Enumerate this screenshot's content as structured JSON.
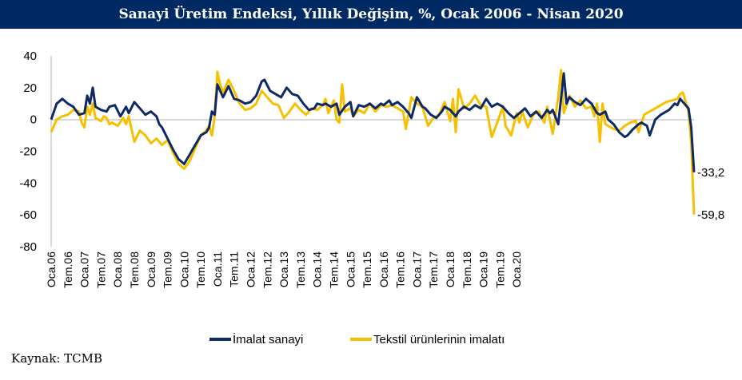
{
  "chart_data": {
    "type": "line",
    "title": "Sanayi Üretim Endeksi, Yıllık Değişim, %, Ocak 2006 - Nisan 2020",
    "source": "Kaynak: TCMB",
    "ylim": [
      -80,
      40
    ],
    "yticks": [
      "40",
      "20",
      "0",
      "-20",
      "-40",
      "-60",
      "-80"
    ],
    "xticks": [
      "Oca.06",
      "Tem.06",
      "Oca.07",
      "Tem.07",
      "Oca.08",
      "Tem.08",
      "Oca.09",
      "Tem.09",
      "Oca.10",
      "Tem.10",
      "Oca.11",
      "Tem.11",
      "Oca.12",
      "Tem.12",
      "Oca.13",
      "Tem.13",
      "Oca.14",
      "Tem.14",
      "Oca.15",
      "Tem.15",
      "Oca.16",
      "Tem.16",
      "Oca.17",
      "Tem.17",
      "Oca.18",
      "Tem.18",
      "Oca.19",
      "Tem.19",
      "Oca.20"
    ],
    "legend_position": "bottom",
    "annotations": [
      {
        "series": 0,
        "text": "-33,2"
      },
      {
        "series": 1,
        "text": "-59,8"
      }
    ],
    "series": [
      {
        "name": "İmalat sanayi",
        "color": "#0d2a66",
        "points": [
          [
            0,
            0
          ],
          [
            2,
            10
          ],
          [
            4,
            13
          ],
          [
            6,
            10
          ],
          [
            8,
            8
          ],
          [
            10,
            3
          ],
          [
            12,
            4
          ],
          [
            13,
            15
          ],
          [
            14,
            10
          ],
          [
            15,
            20
          ],
          [
            16,
            8
          ],
          [
            18,
            6
          ],
          [
            20,
            5
          ],
          [
            21,
            8
          ],
          [
            23,
            9
          ],
          [
            25,
            2
          ],
          [
            27,
            8
          ],
          [
            28,
            4
          ],
          [
            30,
            11
          ],
          [
            32,
            7
          ],
          [
            34,
            3
          ],
          [
            36,
            5
          ],
          [
            38,
            2
          ],
          [
            39,
            -3
          ],
          [
            40,
            -5
          ],
          [
            42,
            -12
          ],
          [
            44,
            -19
          ],
          [
            46,
            -25
          ],
          [
            48,
            -28
          ],
          [
            50,
            -22
          ],
          [
            52,
            -16
          ],
          [
            54,
            -10
          ],
          [
            56,
            -8
          ],
          [
            57,
            -5
          ],
          [
            58,
            5
          ],
          [
            59,
            3
          ],
          [
            60,
            22
          ],
          [
            62,
            14
          ],
          [
            64,
            21
          ],
          [
            66,
            13
          ],
          [
            68,
            12
          ],
          [
            70,
            10
          ],
          [
            72,
            11
          ],
          [
            74,
            15
          ],
          [
            76,
            24
          ],
          [
            77,
            25
          ],
          [
            79,
            18
          ],
          [
            81,
            16
          ],
          [
            83,
            14
          ],
          [
            85,
            20
          ],
          [
            87,
            16
          ],
          [
            89,
            15
          ],
          [
            91,
            10
          ],
          [
            93,
            6
          ],
          [
            95,
            7
          ],
          [
            96,
            10
          ],
          [
            98,
            9
          ],
          [
            99,
            10
          ],
          [
            101,
            8
          ],
          [
            103,
            10
          ],
          [
            104,
            3
          ],
          [
            106,
            8
          ],
          [
            108,
            11
          ],
          [
            109,
            2
          ],
          [
            111,
            9
          ],
          [
            113,
            8
          ],
          [
            115,
            10
          ],
          [
            117,
            7
          ],
          [
            119,
            10
          ],
          [
            120,
            9
          ],
          [
            122,
            12
          ],
          [
            123,
            9
          ],
          [
            125,
            11
          ],
          [
            127,
            8
          ],
          [
            129,
            4
          ],
          [
            130,
            1
          ],
          [
            132,
            14
          ],
          [
            133,
            11
          ],
          [
            134,
            8
          ],
          [
            135,
            7
          ],
          [
            137,
            3
          ],
          [
            139,
            1
          ],
          [
            141,
            5
          ],
          [
            142,
            8
          ],
          [
            144,
            6
          ],
          [
            146,
            2
          ],
          [
            147,
            5
          ],
          [
            149,
            8
          ],
          [
            150,
            7
          ],
          [
            151,
            6
          ],
          [
            153,
            9
          ],
          [
            155,
            7
          ],
          [
            157,
            13
          ],
          [
            159,
            8
          ],
          [
            161,
            10
          ],
          [
            163,
            8
          ],
          [
            165,
            4
          ],
          [
            167,
            1
          ],
          [
            169,
            4
          ],
          [
            171,
            7
          ],
          [
            173,
            2
          ],
          [
            175,
            5
          ],
          [
            177,
            1
          ],
          [
            179,
            6
          ],
          [
            180,
            4
          ],
          [
            181,
            6
          ],
          [
            183,
            -3
          ],
          [
            185,
            29
          ],
          [
            186,
            10
          ],
          [
            187,
            14
          ],
          [
            189,
            11
          ],
          [
            191,
            9
          ],
          [
            193,
            13
          ],
          [
            195,
            10
          ],
          [
            196,
            7
          ],
          [
            197,
            4
          ],
          [
            198,
            3
          ],
          [
            200,
            5
          ],
          [
            201,
            0
          ],
          [
            203,
            -3
          ],
          [
            205,
            -8
          ],
          [
            207,
            -11
          ],
          [
            208,
            -10
          ],
          [
            210,
            -6
          ],
          [
            212,
            -3
          ],
          [
            213,
            -2
          ],
          [
            215,
            -4
          ],
          [
            216,
            -10
          ],
          [
            218,
            0
          ],
          [
            220,
            3
          ],
          [
            221,
            4
          ],
          [
            223,
            6
          ],
          [
            225,
            10
          ],
          [
            226,
            9
          ],
          [
            227,
            13
          ],
          [
            228,
            11
          ],
          [
            230,
            7
          ],
          [
            231,
            -5
          ],
          [
            232,
            -33.2
          ]
        ]
      },
      {
        "name": "Tekstil ürünlerinin imalatı",
        "color": "#f6c000",
        "points": [
          [
            0,
            -8
          ],
          [
            2,
            0
          ],
          [
            4,
            2
          ],
          [
            6,
            3
          ],
          [
            8,
            6
          ],
          [
            10,
            5
          ],
          [
            11,
            -2
          ],
          [
            12,
            -5
          ],
          [
            13,
            8
          ],
          [
            14,
            3
          ],
          [
            15,
            10
          ],
          [
            16,
            1
          ],
          [
            18,
            -1
          ],
          [
            19,
            2
          ],
          [
            20,
            1
          ],
          [
            21,
            -3
          ],
          [
            22,
            -2
          ],
          [
            24,
            -4
          ],
          [
            26,
            1
          ],
          [
            27,
            -3
          ],
          [
            28,
            2
          ],
          [
            30,
            -14
          ],
          [
            32,
            -7
          ],
          [
            34,
            -10
          ],
          [
            36,
            -15
          ],
          [
            38,
            -12
          ],
          [
            40,
            -16
          ],
          [
            42,
            -13
          ],
          [
            44,
            -21
          ],
          [
            46,
            -28
          ],
          [
            48,
            -31
          ],
          [
            50,
            -26
          ],
          [
            52,
            -18
          ],
          [
            54,
            -10
          ],
          [
            56,
            -7
          ],
          [
            57,
            -4
          ],
          [
            58,
            -10
          ],
          [
            59,
            2
          ],
          [
            60,
            30
          ],
          [
            61,
            22
          ],
          [
            62,
            17
          ],
          [
            64,
            25
          ],
          [
            66,
            18
          ],
          [
            68,
            10
          ],
          [
            70,
            6
          ],
          [
            72,
            7
          ],
          [
            74,
            10
          ],
          [
            76,
            18
          ],
          [
            78,
            14
          ],
          [
            80,
            10
          ],
          [
            82,
            9
          ],
          [
            84,
            1
          ],
          [
            86,
            5
          ],
          [
            88,
            10
          ],
          [
            90,
            6
          ],
          [
            92,
            3
          ],
          [
            94,
            7
          ],
          [
            96,
            6
          ],
          [
            98,
            9
          ],
          [
            99,
            13
          ],
          [
            100,
            4
          ],
          [
            102,
            12
          ],
          [
            103,
            0
          ],
          [
            104,
            -2
          ],
          [
            105,
            22
          ],
          [
            106,
            5
          ],
          [
            108,
            7
          ],
          [
            109,
            2
          ],
          [
            111,
            6
          ],
          [
            113,
            4
          ],
          [
            115,
            10
          ],
          [
            117,
            5
          ],
          [
            119,
            9
          ],
          [
            121,
            8
          ],
          [
            123,
            9
          ],
          [
            125,
            7
          ],
          [
            127,
            5
          ],
          [
            128,
            -6
          ],
          [
            130,
            14
          ],
          [
            132,
            10
          ],
          [
            134,
            8
          ],
          [
            136,
            -4
          ],
          [
            138,
            1
          ],
          [
            140,
            3
          ],
          [
            142,
            11
          ],
          [
            144,
            -1
          ],
          [
            145,
            13
          ],
          [
            146,
            -8
          ],
          [
            147,
            19
          ],
          [
            149,
            7
          ],
          [
            151,
            10
          ],
          [
            153,
            15
          ],
          [
            155,
            9
          ],
          [
            157,
            8
          ],
          [
            159,
            -11
          ],
          [
            161,
            -2
          ],
          [
            163,
            8
          ],
          [
            164,
            -4
          ],
          [
            166,
            -10
          ],
          [
            168,
            4
          ],
          [
            169,
            -2
          ],
          [
            170,
            5
          ],
          [
            172,
            -5
          ],
          [
            174,
            3
          ],
          [
            176,
            5
          ],
          [
            178,
            -2
          ],
          [
            179,
            8
          ],
          [
            181,
            -9
          ],
          [
            183,
            14
          ],
          [
            184,
            31
          ],
          [
            185,
            4
          ],
          [
            187,
            15
          ],
          [
            189,
            8
          ],
          [
            191,
            12
          ],
          [
            193,
            7
          ],
          [
            195,
            8
          ],
          [
            196,
            2
          ],
          [
            197,
            10
          ],
          [
            198,
            -14
          ],
          [
            199,
            10
          ],
          [
            200,
            -3
          ],
          [
            202,
            -5
          ],
          [
            203,
            -6
          ],
          [
            205,
            -7
          ],
          [
            207,
            -4
          ],
          [
            209,
            -2
          ],
          [
            211,
            -1
          ],
          [
            212,
            -8
          ],
          [
            214,
            3
          ],
          [
            216,
            5
          ],
          [
            218,
            7
          ],
          [
            220,
            9
          ],
          [
            222,
            11
          ],
          [
            224,
            12
          ],
          [
            226,
            13
          ],
          [
            227,
            16
          ],
          [
            228,
            17
          ],
          [
            230,
            5
          ],
          [
            231,
            -15
          ],
          [
            232,
            -59.8
          ]
        ]
      }
    ]
  }
}
